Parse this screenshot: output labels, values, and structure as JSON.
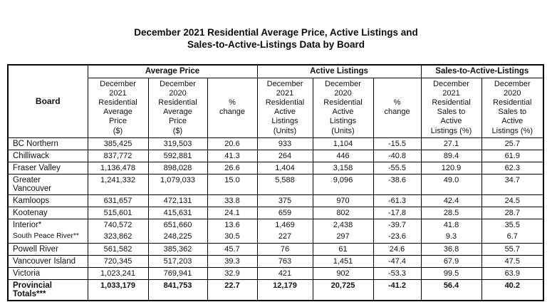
{
  "title": {
    "text": "December 2021 Residential Average Price, Active Listings and\nSales-to-Active-Listings Data by Board"
  },
  "colors": {
    "text": "#111111",
    "border": "#000000",
    "background": "#ffffff"
  },
  "table": {
    "board_header": "Board",
    "groups": [
      {
        "label": "Average Price"
      },
      {
        "label": "Active Listings"
      },
      {
        "label": "Sales-to-Active-Listings"
      }
    ],
    "col_headers": [
      "December\n2021\nResidential\nAverage\nPrice\n($)",
      "December\n2020\nResidential\nAverage\nPrice\n($)",
      "%\nchange",
      "December\n2021\nResidential\nActive\nListings\n(Units)",
      "December\n2020\nResidential\nActive\nListings\n(Units)",
      "%\nchange",
      "December\n2021\nResidential\nSales to\nActive\nListings (%)",
      "December\n2020\nResidential\nSales to\nActive\nListings (%)"
    ],
    "rows": [
      {
        "board": "BC Northern",
        "values": [
          "385,425",
          "319,503",
          "20.6",
          "933",
          "1,104",
          "-15.5",
          "27.1",
          "25.7"
        ]
      },
      {
        "board": "Chilliwack",
        "values": [
          "837,772",
          "592,881",
          "41.3",
          "264",
          "446",
          "-40.8",
          "89.4",
          "61.9"
        ]
      },
      {
        "board": "Fraser Valley",
        "values": [
          "1,136,478",
          "898,028",
          "26.6",
          "1,404",
          "3,158",
          "-55.5",
          "120.9",
          "62.3"
        ]
      },
      {
        "board": "Greater\nVancouver",
        "values": [
          "1,241,332",
          "1,079,033",
          "15.0",
          "5,588",
          "9,096",
          "-38.6",
          "49.0",
          "34.7"
        ]
      },
      {
        "board": "Kamloops",
        "values": [
          "631,657",
          "472,131",
          "33.8",
          "375",
          "970",
          "-61.3",
          "42.4",
          "24.5"
        ]
      },
      {
        "board": "Kootenay",
        "values": [
          "515,601",
          "415,631",
          "24.1",
          "659",
          "802",
          "-17.8",
          "28.5",
          "28.7"
        ]
      },
      {
        "board": "Interior*",
        "values": [
          "740,572",
          "651,660",
          "13.6",
          "1,469",
          "2,438",
          "-39.7",
          "41.8",
          "35.5"
        ]
      },
      {
        "board": "South Peace River**",
        "values": [
          "323,862",
          "248,225",
          "30.5",
          "227",
          "297",
          "-23.6",
          "9.3",
          "6.7"
        ]
      },
      {
        "board": "Powell River",
        "values": [
          "561,582",
          "385,362",
          "45.7",
          "76",
          "61",
          "24.6",
          "36.8",
          "55.7"
        ]
      },
      {
        "board": "Vancouver Island",
        "values": [
          "720,345",
          "517,203",
          "39.3",
          "763",
          "1,451",
          "-47.4",
          "67.9",
          "47.5"
        ]
      },
      {
        "board": "Victoria",
        "values": [
          "1,023,241",
          "769,941",
          "32.9",
          "421",
          "902",
          "-53.3",
          "99.5",
          "63.9"
        ]
      },
      {
        "board": "Provincial\nTotals***",
        "values": [
          "1,033,179",
          "841,753",
          "22.7",
          "12,179",
          "20,725",
          "-41.2",
          "56.4",
          "40.2"
        ]
      }
    ]
  }
}
